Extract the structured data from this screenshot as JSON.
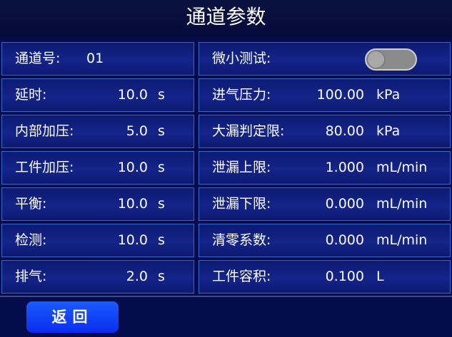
{
  "title": "通道参数",
  "left": [
    {
      "label": "通道号:",
      "value": "01",
      "unit": ""
    },
    {
      "label": "延时:",
      "value": "10.0",
      "unit": "s"
    },
    {
      "label": "内部加压:",
      "value": "5.0",
      "unit": "s"
    },
    {
      "label": "工件加压:",
      "value": "10.0",
      "unit": "s"
    },
    {
      "label": "平衡:",
      "value": "10.0",
      "unit": "s"
    },
    {
      "label": "检测:",
      "value": "10.0",
      "unit": "s"
    },
    {
      "label": "排气:",
      "value": "2.0",
      "unit": "s"
    }
  ],
  "right": [
    {
      "label": "微小测试:",
      "value": "",
      "unit": ""
    },
    {
      "label": "进气压力:",
      "value": "100.00",
      "unit": "kPa"
    },
    {
      "label": "大漏判定限:",
      "value": "80.00",
      "unit": "kPa"
    },
    {
      "label": "泄漏上限:",
      "value": "1.000",
      "unit": "mL/min"
    },
    {
      "label": "泄漏下限:",
      "value": "0.000",
      "unit": "mL/min"
    },
    {
      "label": "清零系数:",
      "value": "0.000",
      "unit": "mL/min"
    },
    {
      "label": "工件容积:",
      "value": "0.100",
      "unit": "L"
    }
  ],
  "micro_test_enabled": false,
  "back_label": "返回",
  "colors": {
    "background": "#040c4c",
    "border": "#2c6ad0",
    "button": "#1a5cff"
  }
}
